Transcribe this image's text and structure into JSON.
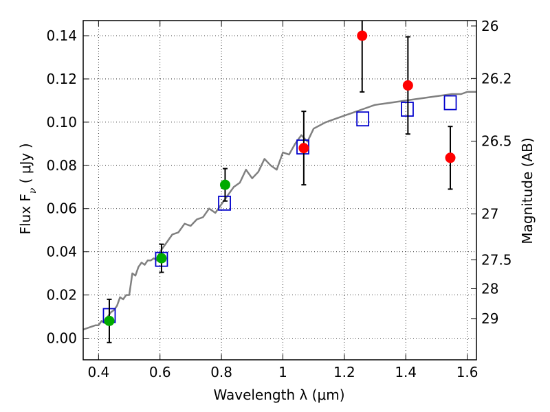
{
  "chart_data": {
    "type": "scatter",
    "xlabel": "Wavelength  λ (μm)",
    "ylabel": "Flux  F",
    "ylabel_sub": "ν",
    "ylabel_unit": " ( μJy )",
    "y2label": "Magnitude (AB)",
    "xlim": [
      0.35,
      1.63
    ],
    "ylim": [
      -0.01,
      0.147
    ],
    "grid": true,
    "x_ticks": [
      0.4,
      0.6,
      0.8,
      1.0,
      1.2,
      1.4,
      1.6
    ],
    "x_tick_labels": [
      "0.4",
      "0.6",
      "0.8",
      "1",
      "1.2",
      "1.4",
      "1.6"
    ],
    "y_ticks": [
      0.0,
      0.02,
      0.04,
      0.06,
      0.08,
      0.1,
      0.12,
      0.14
    ],
    "y_tick_labels": [
      "0.00",
      "0.02",
      "0.04",
      "0.06",
      "0.08",
      "0.10",
      "0.12",
      "0.14"
    ],
    "y2_ticks": [
      {
        "label": "26",
        "flux": 0.1445
      },
      {
        "label": "26.2",
        "flux": 0.1202
      },
      {
        "label": "26.5",
        "flux": 0.0912
      },
      {
        "label": "27",
        "flux": 0.0575
      },
      {
        "label": "27.5",
        "flux": 0.0363
      },
      {
        "label": "28",
        "flux": 0.0229
      },
      {
        "label": "29",
        "flux": 0.0091
      }
    ],
    "colors": {
      "model": "#808080",
      "model_photometry": "#0000cc",
      "red_points": "#ff0000",
      "green_points": "#00aa00"
    },
    "series": [
      {
        "marker": "line",
        "color": "#808080",
        "x": [
          0.35,
          0.37,
          0.39,
          0.4,
          0.41,
          0.42,
          0.43,
          0.44,
          0.45,
          0.46,
          0.47,
          0.48,
          0.49,
          0.5,
          0.51,
          0.52,
          0.53,
          0.54,
          0.55,
          0.56,
          0.57,
          0.58,
          0.59,
          0.6,
          0.62,
          0.64,
          0.66,
          0.68,
          0.7,
          0.72,
          0.74,
          0.76,
          0.78,
          0.8,
          0.82,
          0.84,
          0.86,
          0.88,
          0.9,
          0.92,
          0.94,
          0.96,
          0.98,
          1.0,
          1.02,
          1.04,
          1.06,
          1.08,
          1.1,
          1.14,
          1.18,
          1.22,
          1.26,
          1.3,
          1.35,
          1.4,
          1.45,
          1.5,
          1.55,
          1.58,
          1.6,
          1.63
        ],
        "y": [
          0.004,
          0.005,
          0.006,
          0.006,
          0.008,
          0.007,
          0.01,
          0.012,
          0.013,
          0.015,
          0.019,
          0.018,
          0.02,
          0.02,
          0.03,
          0.029,
          0.033,
          0.035,
          0.034,
          0.036,
          0.036,
          0.037,
          0.036,
          0.04,
          0.044,
          0.048,
          0.049,
          0.053,
          0.052,
          0.055,
          0.056,
          0.06,
          0.058,
          0.062,
          0.066,
          0.07,
          0.072,
          0.078,
          0.074,
          0.077,
          0.083,
          0.08,
          0.078,
          0.086,
          0.085,
          0.09,
          0.094,
          0.091,
          0.097,
          0.1,
          0.102,
          0.104,
          0.106,
          0.108,
          0.109,
          0.11,
          0.111,
          0.112,
          0.113,
          0.113,
          0.114,
          0.114
        ]
      },
      {
        "marker": "square",
        "color": "#0000cc",
        "x": [
          0.435,
          0.605,
          0.81,
          1.065,
          1.26,
          1.405,
          1.545
        ],
        "y": [
          0.0105,
          0.0365,
          0.0625,
          0.0885,
          0.1015,
          0.106,
          0.109
        ]
      },
      {
        "marker": "circle",
        "color": "#00aa00",
        "x": [
          0.435,
          0.605,
          0.812
        ],
        "y": [
          0.008,
          0.037,
          0.071
        ],
        "yerr": [
          0.01,
          0.0065,
          0.0075
        ]
      },
      {
        "marker": "circle",
        "color": "#ff0000",
        "x": [
          1.068,
          1.258,
          1.407,
          1.545
        ],
        "y": [
          0.088,
          0.14,
          0.117,
          0.0835
        ],
        "yerr": [
          0.017,
          0.026,
          0.0225,
          0.0145
        ]
      }
    ]
  }
}
